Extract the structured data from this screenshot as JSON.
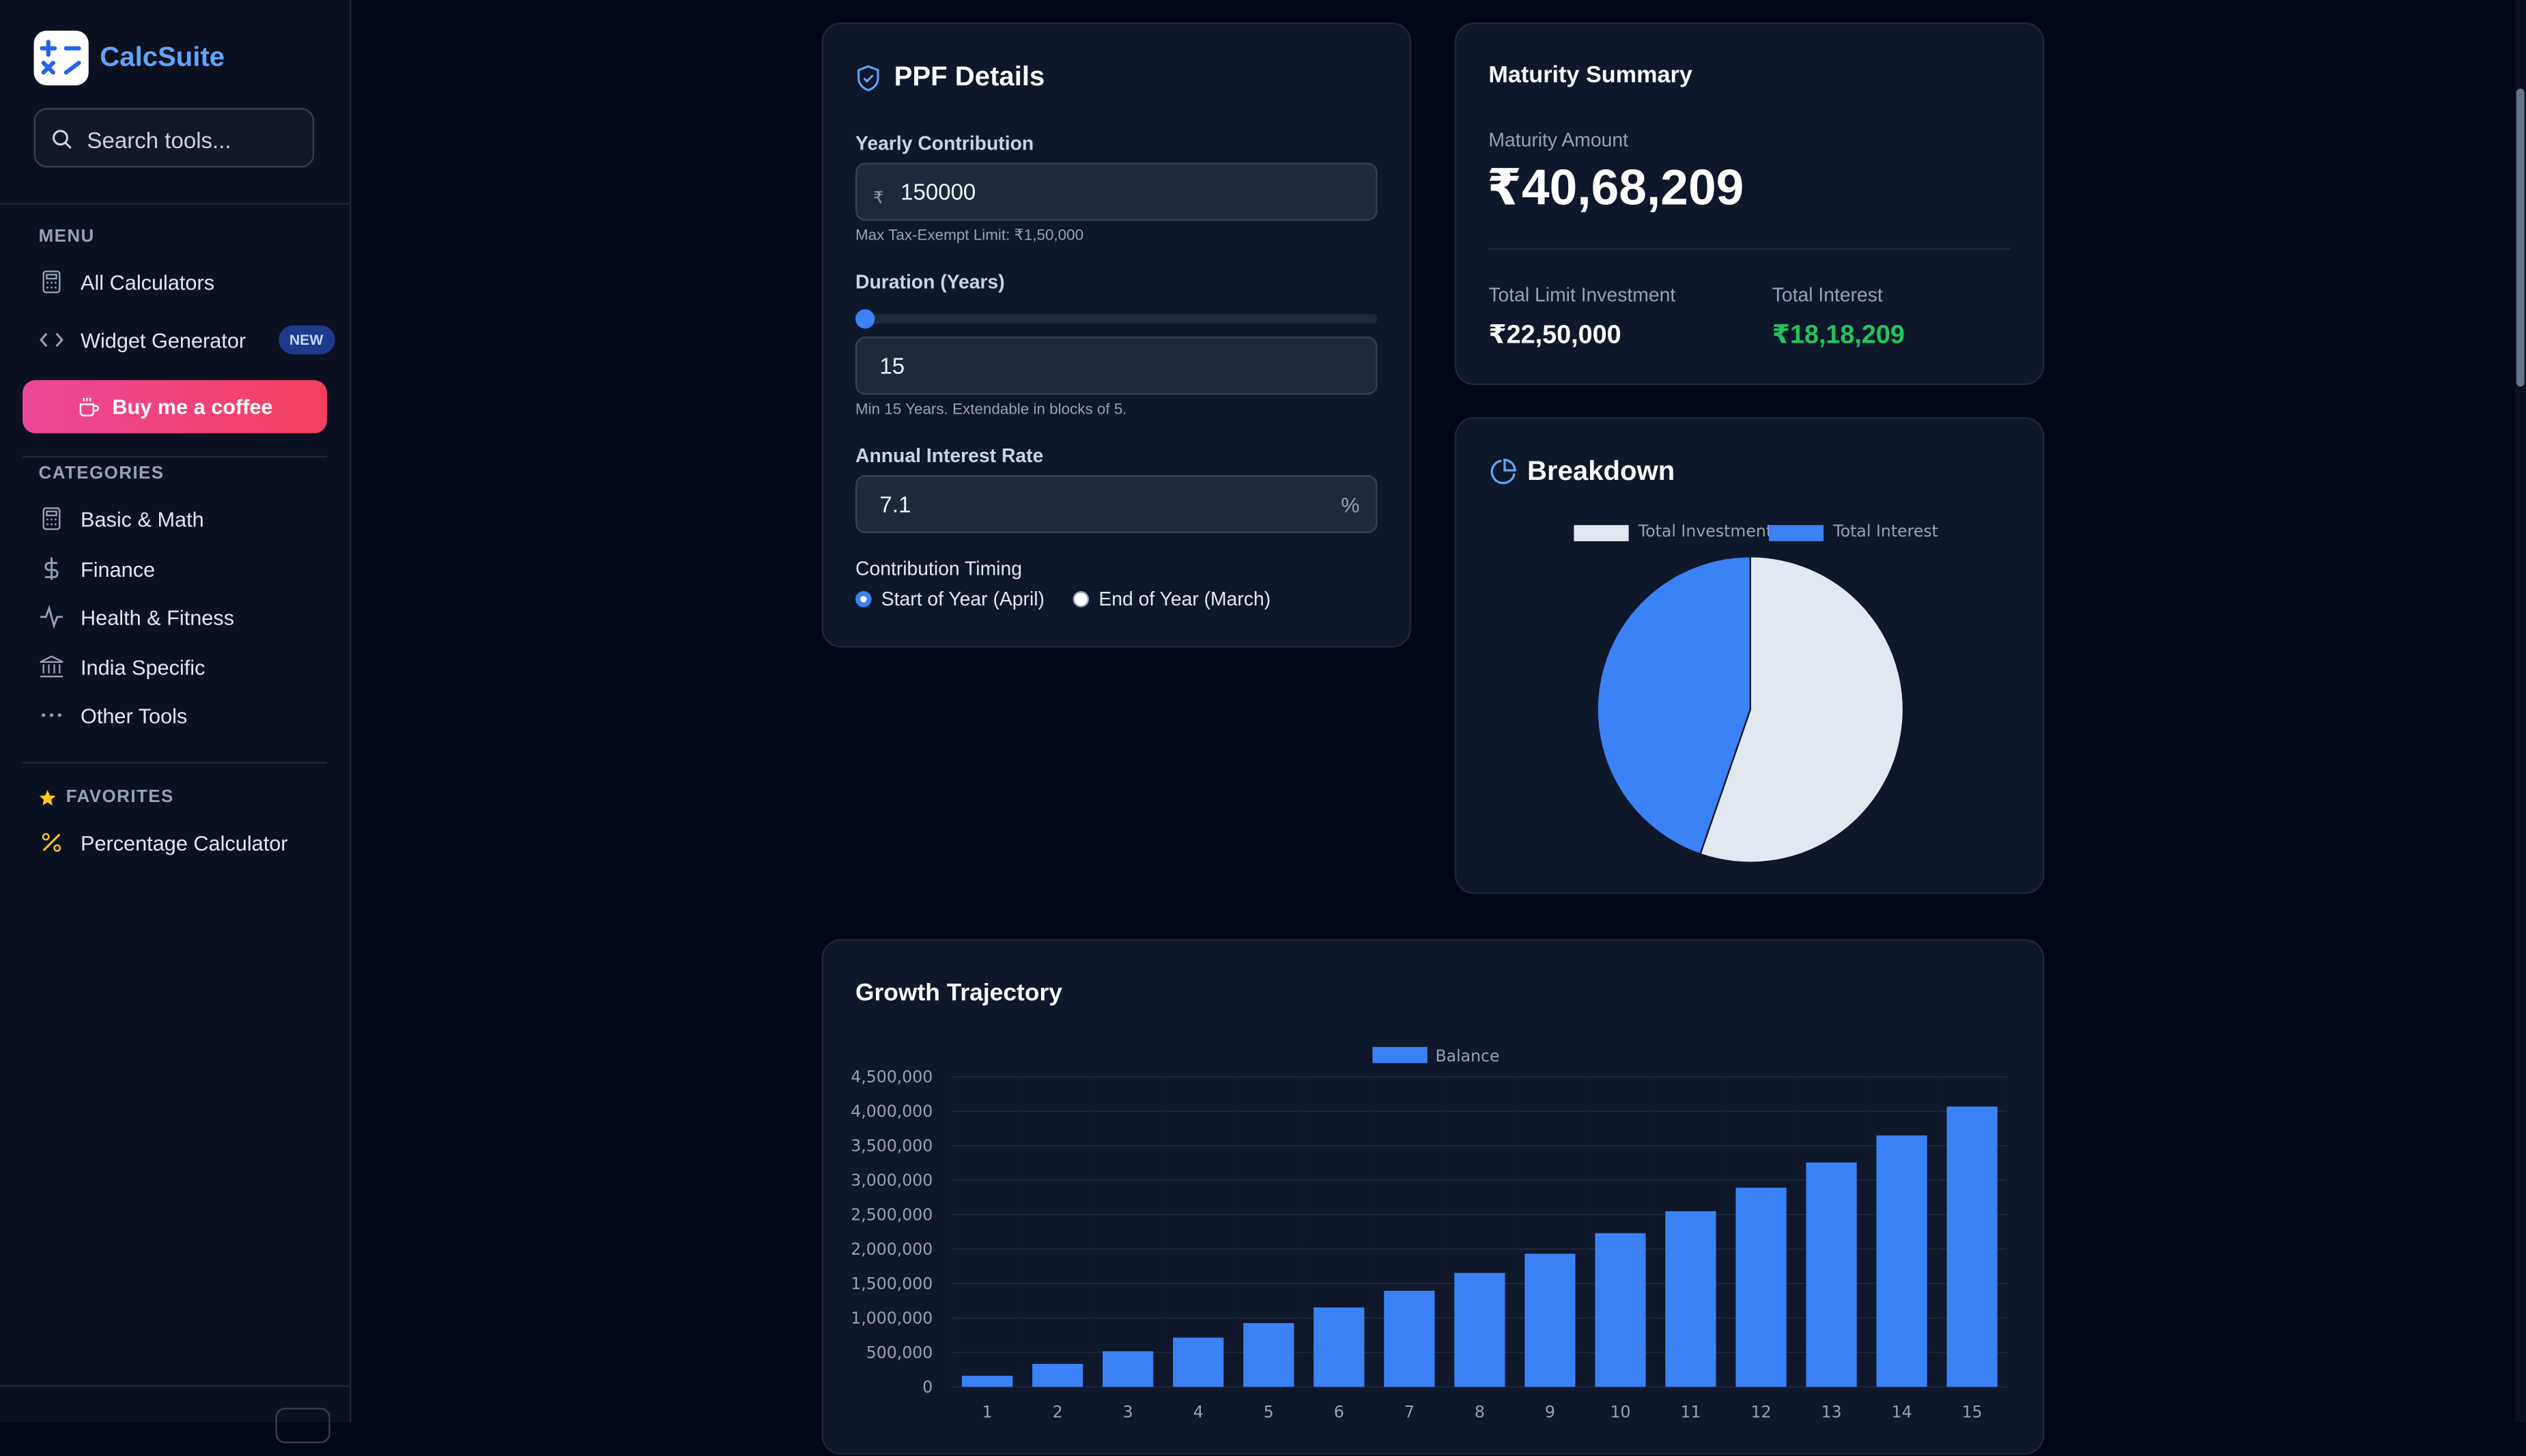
{
  "app": {
    "name": "CalcSuite"
  },
  "search": {
    "placeholder": "Search tools..."
  },
  "menu": {
    "heading": "MENU",
    "items": [
      {
        "label": "All Calculators",
        "icon": "calculator-icon"
      },
      {
        "label": "Widget Generator",
        "icon": "code-icon",
        "badge": "NEW"
      }
    ],
    "coffee_label": "Buy me a coffee"
  },
  "categories": {
    "heading": "CATEGORIES",
    "items": [
      {
        "label": "Basic & Math",
        "icon": "calculator-icon"
      },
      {
        "label": "Finance",
        "icon": "dollar-icon"
      },
      {
        "label": "Health & Fitness",
        "icon": "activity-icon"
      },
      {
        "label": "India Specific",
        "icon": "bank-icon"
      },
      {
        "label": "Other Tools",
        "icon": "more-icon"
      }
    ]
  },
  "favorites": {
    "heading": "FAVORITES",
    "items": [
      {
        "label": "Percentage Calculator",
        "icon": "percent-icon"
      }
    ]
  },
  "ppf": {
    "title": "PPF Details",
    "yearly_label": "Yearly Contribution",
    "currency_symbol": "₹",
    "yearly_value": "150000",
    "yearly_hint": "Max Tax-Exempt Limit: ₹1,50,000",
    "duration_label": "Duration (Years)",
    "duration_value": "15",
    "duration_hint": "Min 15 Years. Extendable in blocks of 5.",
    "rate_label": "Annual Interest Rate",
    "rate_value": "7.1",
    "rate_suffix": "%",
    "timing_label": "Contribution Timing",
    "timing_options": [
      "Start of Year (April)",
      "End of Year (March)"
    ],
    "timing_selected": "Start of Year (April)"
  },
  "summary": {
    "title": "Maturity Summary",
    "maturity_label": "Maturity Amount",
    "maturity_value": "₹40,68,209",
    "investment_label": "Total Limit Investment",
    "investment_value": "₹22,50,000",
    "interest_label": "Total Interest",
    "interest_value": "₹18,18,209",
    "interest_color": "#22c55e"
  },
  "breakdown": {
    "title": "Breakdown",
    "chart_data": {
      "type": "pie",
      "labels": [
        "Total Investment",
        "Total Interest"
      ],
      "values": [
        2250000,
        1818209
      ],
      "colors": [
        "#e2e8f0",
        "#3b82f6"
      ],
      "legend": "top"
    }
  },
  "growth": {
    "title": "Growth Trajectory"
  },
  "chart_data": {
    "type": "bar",
    "categories": [
      "1",
      "2",
      "3",
      "4",
      "5",
      "6",
      "7",
      "8",
      "9",
      "10",
      "11",
      "12",
      "13",
      "14",
      "15"
    ],
    "series": [
      {
        "name": "Balance",
        "values": [
          160650,
          332706,
          516968,
          714313,
          925659,
          1152016,
          1394437,
          1654062,
          1932180,
          2229924,
          2548890,
          2890488,
          3256338,
          3648163,
          4068209
        ],
        "color": "#3b82f6"
      }
    ],
    "yticks": [
      "0",
      "500,000",
      "1,000,000",
      "1,500,000",
      "2,000,000",
      "2,500,000",
      "3,000,000",
      "3,500,000",
      "4,000,000",
      "4,500,000"
    ],
    "ylim": [
      0,
      4500000
    ],
    "legend": "top"
  }
}
